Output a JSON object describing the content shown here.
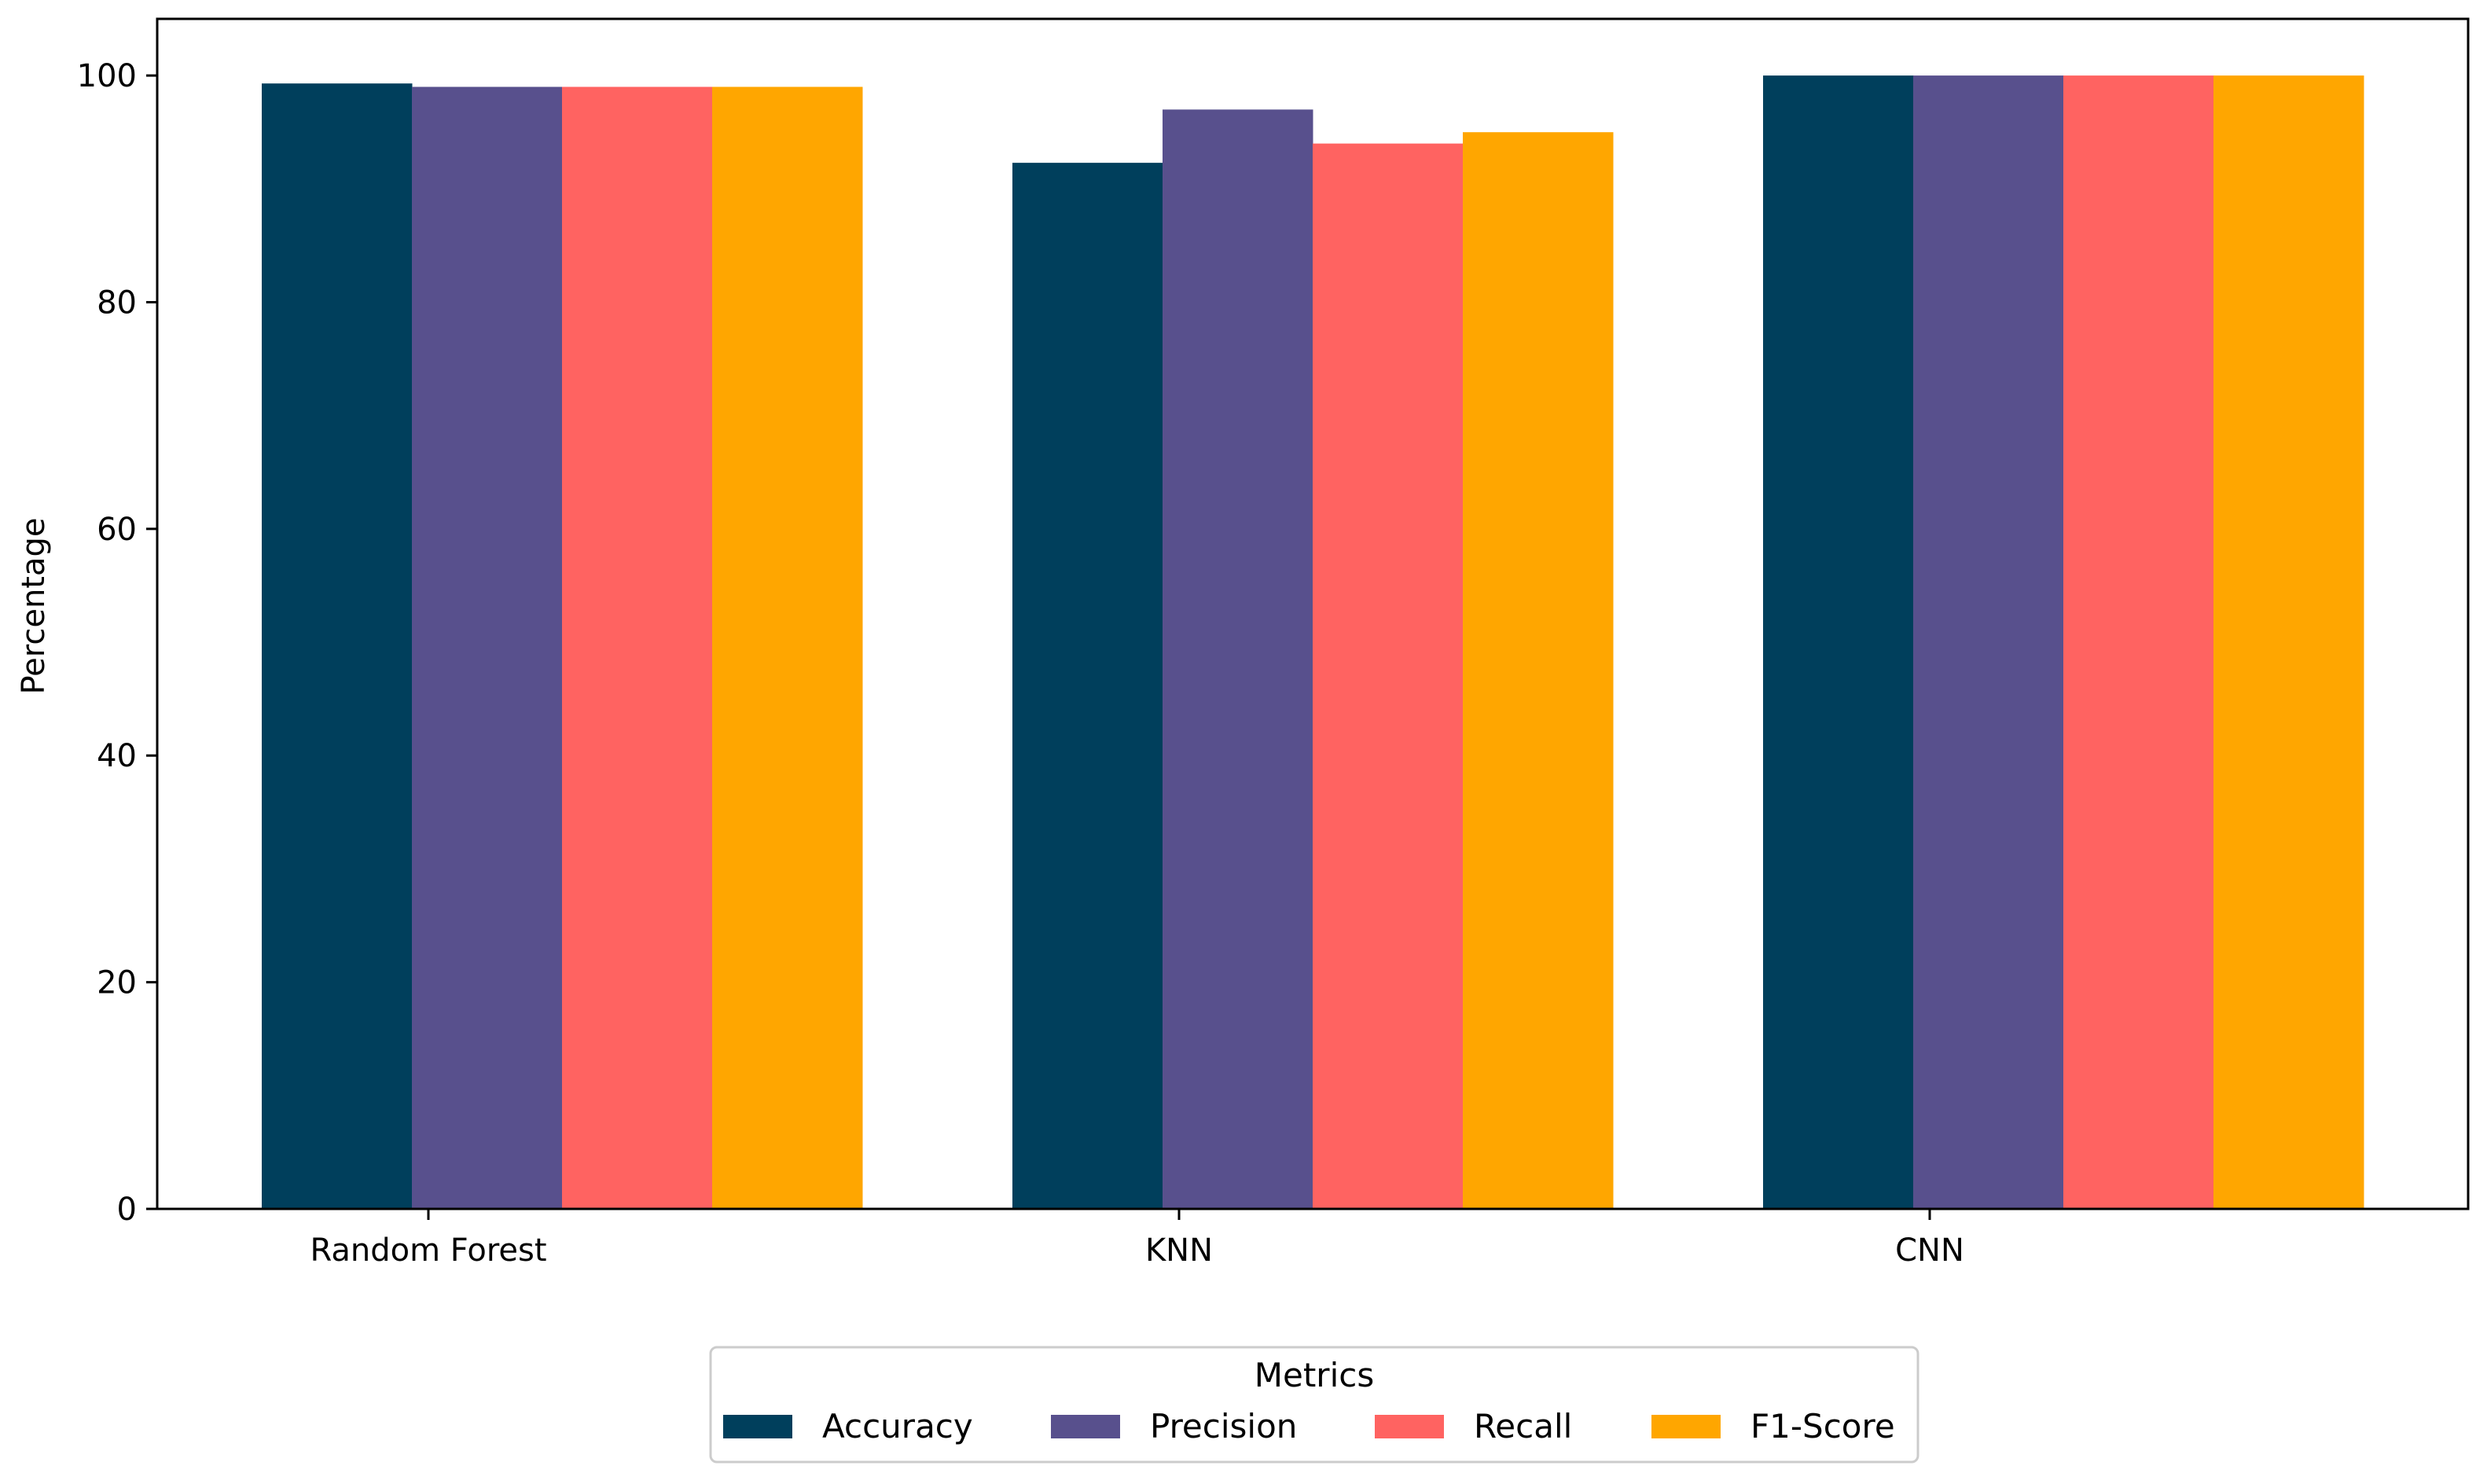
{
  "chart_data": {
    "type": "bar",
    "title": "",
    "xlabel": "",
    "ylabel": "Percentage",
    "categories": [
      "Random Forest",
      "KNN",
      "CNN"
    ],
    "series": [
      {
        "name": "Accuracy",
        "values": [
          99.3,
          92.3,
          100.0
        ],
        "color": "#003f5c"
      },
      {
        "name": "Precision",
        "values": [
          99.0,
          97.0,
          100.0
        ],
        "color": "#58508d"
      },
      {
        "name": "Recall",
        "values": [
          99.0,
          94.0,
          100.0
        ],
        "color": "#ff6361"
      },
      {
        "name": "F1-Score",
        "values": [
          99.0,
          95.0,
          100.0
        ],
        "color": "#ffa600"
      }
    ],
    "ylim": [
      0,
      105
    ],
    "yticks": [
      0,
      20,
      40,
      60,
      80,
      100
    ],
    "grid": false,
    "legend": {
      "title": "Metrics",
      "placement": "bottom-center"
    }
  }
}
